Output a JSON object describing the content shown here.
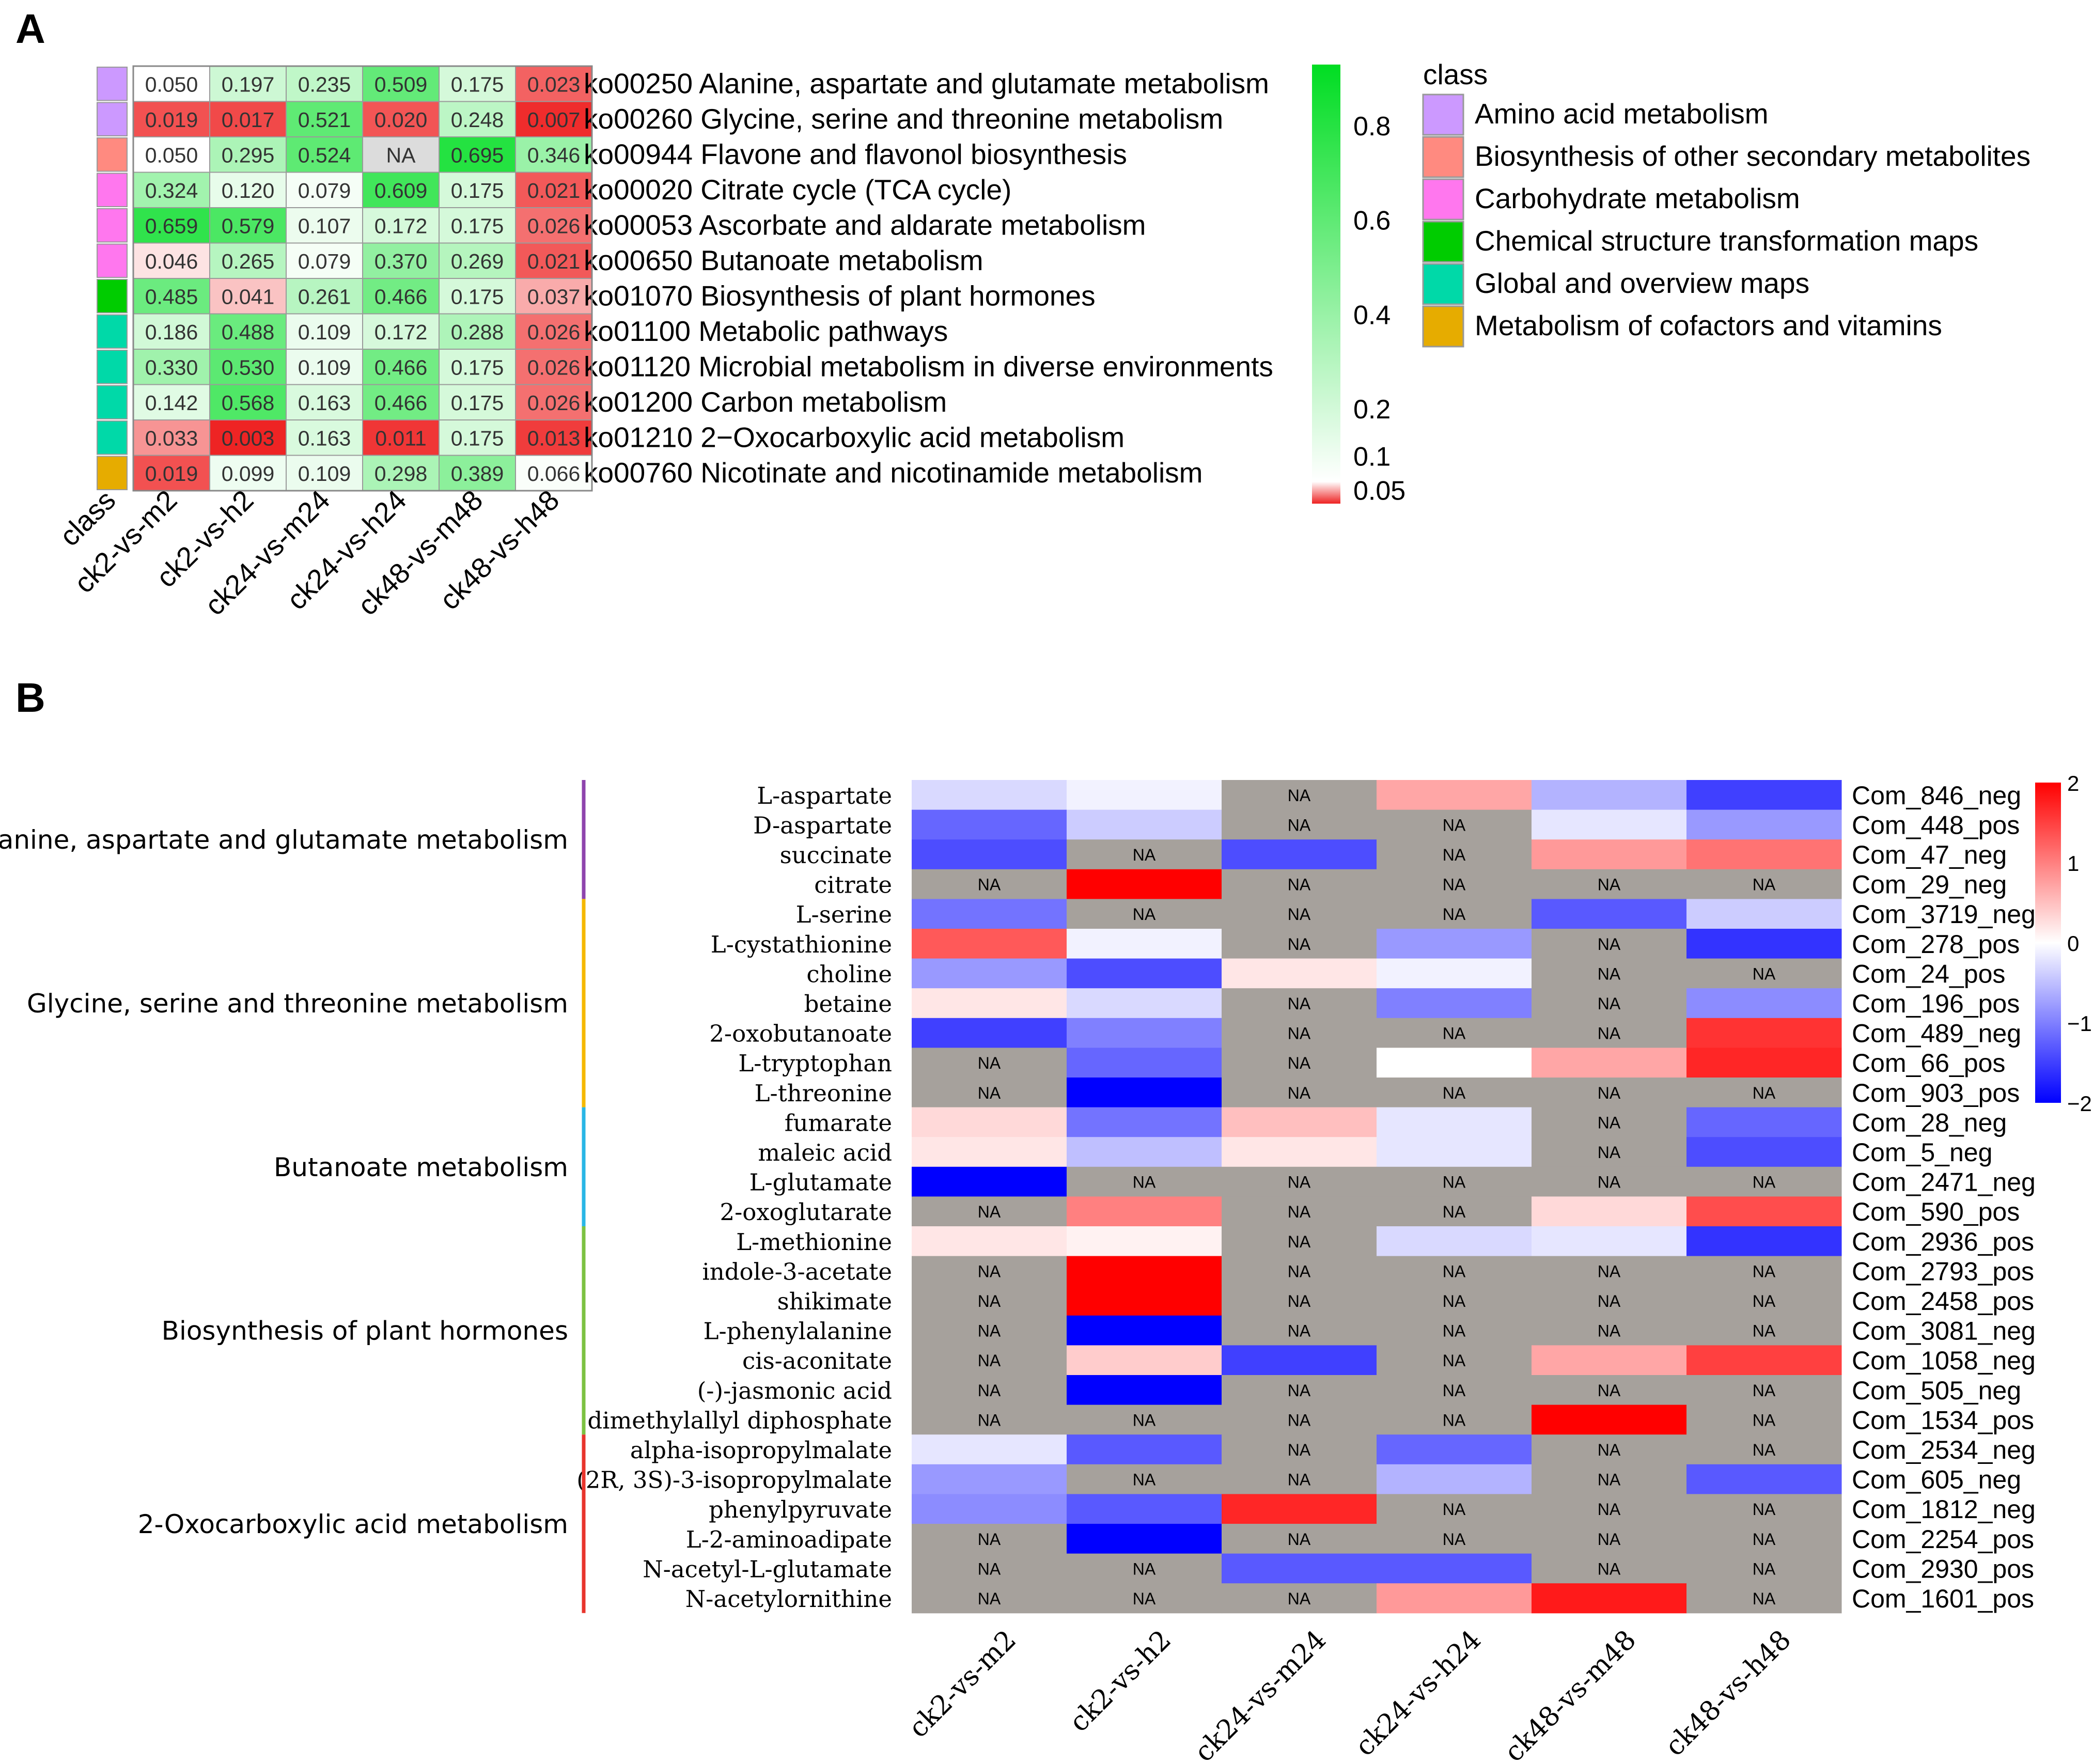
{
  "panel_labels": {
    "a": "A",
    "b": "B"
  },
  "chart_data": [
    {
      "type": "heatmap",
      "panel": "A",
      "columns": [
        "class",
        "ck2-vs-m2",
        "ck2-vs-h2",
        "ck24-vs-m24",
        "ck24-vs-h24",
        "ck48-vs-m48",
        "ck48-vs-h48"
      ],
      "rows": [
        {
          "label": "ko00250 Alanine, aspartate and glutamate metabolism",
          "class": "Amino acid metabolism",
          "values": [
            "0.050",
            "0.197",
            "0.235",
            "0.509",
            "0.175",
            "0.023"
          ]
        },
        {
          "label": "ko00260 Glycine, serine and threonine metabolism",
          "class": "Amino acid metabolism",
          "values": [
            "0.019",
            "0.017",
            "0.521",
            "0.020",
            "0.248",
            "0.007"
          ]
        },
        {
          "label": "ko00944 Flavone and flavonol biosynthesis",
          "class": "Biosynthesis of other secondary metabolites",
          "values": [
            "0.050",
            "0.295",
            "0.524",
            "NA",
            "0.695",
            "0.346"
          ]
        },
        {
          "label": "ko00020 Citrate cycle (TCA cycle)",
          "class": "Carbohydrate metabolism",
          "values": [
            "0.324",
            "0.120",
            "0.079",
            "0.609",
            "0.175",
            "0.021"
          ]
        },
        {
          "label": "ko00053 Ascorbate and aldarate metabolism",
          "class": "Carbohydrate metabolism",
          "values": [
            "0.659",
            "0.579",
            "0.107",
            "0.172",
            "0.175",
            "0.026"
          ]
        },
        {
          "label": "ko00650 Butanoate metabolism",
          "class": "Carbohydrate metabolism",
          "values": [
            "0.046",
            "0.265",
            "0.079",
            "0.370",
            "0.269",
            "0.021"
          ]
        },
        {
          "label": "ko01070 Biosynthesis of plant hormones",
          "class": "Chemical structure transformation maps",
          "values": [
            "0.485",
            "0.041",
            "0.261",
            "0.466",
            "0.175",
            "0.037"
          ]
        },
        {
          "label": "ko01100 Metabolic pathways",
          "class": "Global and overview maps",
          "values": [
            "0.186",
            "0.488",
            "0.109",
            "0.172",
            "0.288",
            "0.026"
          ]
        },
        {
          "label": "ko01120 Microbial metabolism in diverse environments",
          "class": "Global and overview maps",
          "values": [
            "0.330",
            "0.530",
            "0.109",
            "0.466",
            "0.175",
            "0.026"
          ]
        },
        {
          "label": "ko01200 Carbon metabolism",
          "class": "Global and overview maps",
          "values": [
            "0.142",
            "0.568",
            "0.163",
            "0.466",
            "0.175",
            "0.026"
          ]
        },
        {
          "label": "ko01210 2−Oxocarboxylic acid metabolism",
          "class": "Global and overview maps",
          "values": [
            "0.033",
            "0.003",
            "0.163",
            "0.011",
            "0.175",
            "0.013"
          ]
        },
        {
          "label": "ko00760 Nicotinate and nicotinamide metabolism",
          "class": "Metabolism of cofactors and vitamins",
          "values": [
            "0.019",
            "0.099",
            "0.109",
            "0.298",
            "0.389",
            "0.066"
          ]
        }
      ],
      "colorbar": {
        "ticks": [
          "0.8",
          "0.6",
          "0.4",
          "0.2",
          "0.1",
          "0.05"
        ],
        "range": [
          0.0,
          1.0
        ],
        "low_color": "#ee2222",
        "mid_color": "#ffffff",
        "high_color": "#00dd22"
      },
      "legend": {
        "title": "class",
        "items": [
          {
            "label": "Amino acid metabolism",
            "color": "#cc99ff"
          },
          {
            "label": "Biosynthesis of other secondary metabolites",
            "color": "#ff8a80"
          },
          {
            "label": "Carbohydrate metabolism",
            "color": "#ff77ee"
          },
          {
            "label": "Chemical structure transformation maps",
            "color": "#00cc00"
          },
          {
            "label": "Global and overview maps",
            "color": "#00d9a8"
          },
          {
            "label": "Metabolism of cofactors and vitamins",
            "color": "#e6ac00"
          }
        ]
      },
      "na_label": "NA"
    },
    {
      "type": "heatmap",
      "panel": "B",
      "columns": [
        "ck2-vs-m2",
        "ck2-vs-h2",
        "ck24-vs-m24",
        "ck24-vs-h24",
        "ck48-vs-m48",
        "ck48-vs-h48"
      ],
      "rows": [
        {
          "name": "L-aspartate",
          "id": "Com_846_neg",
          "values": [
            -0.3,
            -0.1,
            null,
            0.7,
            -0.6,
            -1.5
          ]
        },
        {
          "name": "D-aspartate",
          "id": "Com_448_pos",
          "values": [
            -1.2,
            -0.4,
            null,
            null,
            -0.2,
            -0.8
          ]
        },
        {
          "name": "succinate",
          "id": "Com_47_neg",
          "values": [
            -1.4,
            null,
            -1.4,
            null,
            0.8,
            1.1
          ]
        },
        {
          "name": "citrate",
          "id": "Com_29_neg",
          "values": [
            null,
            2.0,
            null,
            null,
            null,
            null
          ]
        },
        {
          "name": "L-serine",
          "id": "Com_3719_neg",
          "values": [
            -1.1,
            null,
            null,
            null,
            -1.3,
            -0.4
          ]
        },
        {
          "name": "L-cystathionine",
          "id": "Com_278_pos",
          "values": [
            1.3,
            -0.1,
            null,
            -0.8,
            null,
            -1.6
          ]
        },
        {
          "name": "choline",
          "id": "Com_24_pos",
          "values": [
            -0.8,
            -1.4,
            0.2,
            -0.1,
            null,
            null
          ]
        },
        {
          "name": "betaine",
          "id": "Com_196_pos",
          "values": [
            0.2,
            -0.3,
            null,
            -1.0,
            null,
            -0.9
          ]
        },
        {
          "name": "2-oxobutanoate",
          "id": "Com_489_neg",
          "values": [
            -1.5,
            -1.0,
            null,
            null,
            null,
            1.6
          ]
        },
        {
          "name": "L-tryptophan",
          "id": "Com_66_pos",
          "values": [
            null,
            -1.2,
            null,
            0.0,
            0.7,
            1.7
          ]
        },
        {
          "name": "L-threonine",
          "id": "Com_903_pos",
          "values": [
            null,
            -2.0,
            null,
            null,
            null,
            null
          ]
        },
        {
          "name": "fumarate",
          "id": "Com_28_neg",
          "values": [
            0.3,
            -1.1,
            0.5,
            -0.2,
            null,
            -1.2
          ]
        },
        {
          "name": "maleic acid",
          "id": "Com_5_neg",
          "values": [
            0.2,
            -0.5,
            0.2,
            -0.2,
            null,
            -1.4
          ]
        },
        {
          "name": "L-glutamate",
          "id": "Com_2471_neg",
          "values": [
            -2.0,
            null,
            null,
            null,
            null,
            null
          ]
        },
        {
          "name": "2-oxoglutarate",
          "id": "Com_590_pos",
          "values": [
            null,
            1.0,
            null,
            null,
            0.3,
            1.4
          ]
        },
        {
          "name": "L-methionine",
          "id": "Com_2936_pos",
          "values": [
            0.2,
            0.1,
            null,
            -0.3,
            -0.2,
            -1.6
          ]
        },
        {
          "name": "indole-3-acetate",
          "id": "Com_2793_pos",
          "values": [
            null,
            2.0,
            null,
            null,
            null,
            null
          ]
        },
        {
          "name": "shikimate",
          "id": "Com_2458_pos",
          "values": [
            null,
            2.0,
            null,
            null,
            null,
            null
          ]
        },
        {
          "name": "L-phenylalanine",
          "id": "Com_3081_neg",
          "values": [
            null,
            -2.0,
            null,
            null,
            null,
            null
          ]
        },
        {
          "name": "cis-aconitate",
          "id": "Com_1058_neg",
          "values": [
            null,
            0.4,
            -1.5,
            null,
            0.7,
            1.5
          ]
        },
        {
          "name": "(-)-jasmonic acid",
          "id": "Com_505_neg",
          "values": [
            null,
            -2.0,
            null,
            null,
            null,
            null
          ]
        },
        {
          "name": "dimethylallyl diphosphate",
          "id": "Com_1534_pos",
          "values": [
            null,
            null,
            null,
            null,
            2.0,
            null
          ]
        },
        {
          "name": "alpha-isopropylmalate",
          "id": "Com_2534_neg",
          "values": [
            -0.2,
            -1.3,
            null,
            -1.2,
            null,
            null
          ]
        },
        {
          "name": "(2R, 3S)-3-isopropylmalate",
          "id": "Com_605_neg",
          "values": [
            -0.8,
            null,
            null,
            -0.6,
            null,
            -1.3
          ]
        },
        {
          "name": "phenylpyruvate",
          "id": "Com_1812_neg",
          "values": [
            -0.9,
            -1.3,
            1.7,
            null,
            null,
            null
          ]
        },
        {
          "name": "L-2-aminoadipate",
          "id": "Com_2254_pos",
          "values": [
            null,
            -2.0,
            null,
            null,
            null,
            null
          ]
        },
        {
          "name": "N-acetyl-L-glutamate",
          "id": "Com_2930_pos",
          "values": [
            null,
            null,
            -1.3,
            -1.3,
            null,
            null
          ]
        },
        {
          "name": "N-acetylornithine",
          "id": "Com_1601_pos",
          "values": [
            null,
            null,
            null,
            0.8,
            1.8,
            null
          ]
        }
      ],
      "groups": [
        {
          "label": "Alanine, aspartate and glutamate metabolism",
          "start": 0,
          "end": 3,
          "color": "#8e44ad"
        },
        {
          "label": "Glycine, serine and threonine metabolism",
          "start": 4,
          "end": 10,
          "color": "#f5b800"
        },
        {
          "label": "Butanoate metabolism",
          "start": 11,
          "end": 14,
          "color": "#29b6e6"
        },
        {
          "label": "Biosynthesis of plant hormones",
          "start": 15,
          "end": 21,
          "color": "#7cc242"
        },
        {
          "label": "2-Oxocarboxylic acid metabolism",
          "start": 22,
          "end": 27,
          "color": "#e8342c"
        }
      ],
      "colorbar": {
        "ticks": [
          "2",
          "1",
          "0",
          "−1",
          "−2"
        ],
        "range": [
          -2,
          2
        ],
        "low_color": "#0000ff",
        "mid_color": "#ffffff",
        "high_color": "#ff0000"
      },
      "na_label": "NA"
    }
  ]
}
